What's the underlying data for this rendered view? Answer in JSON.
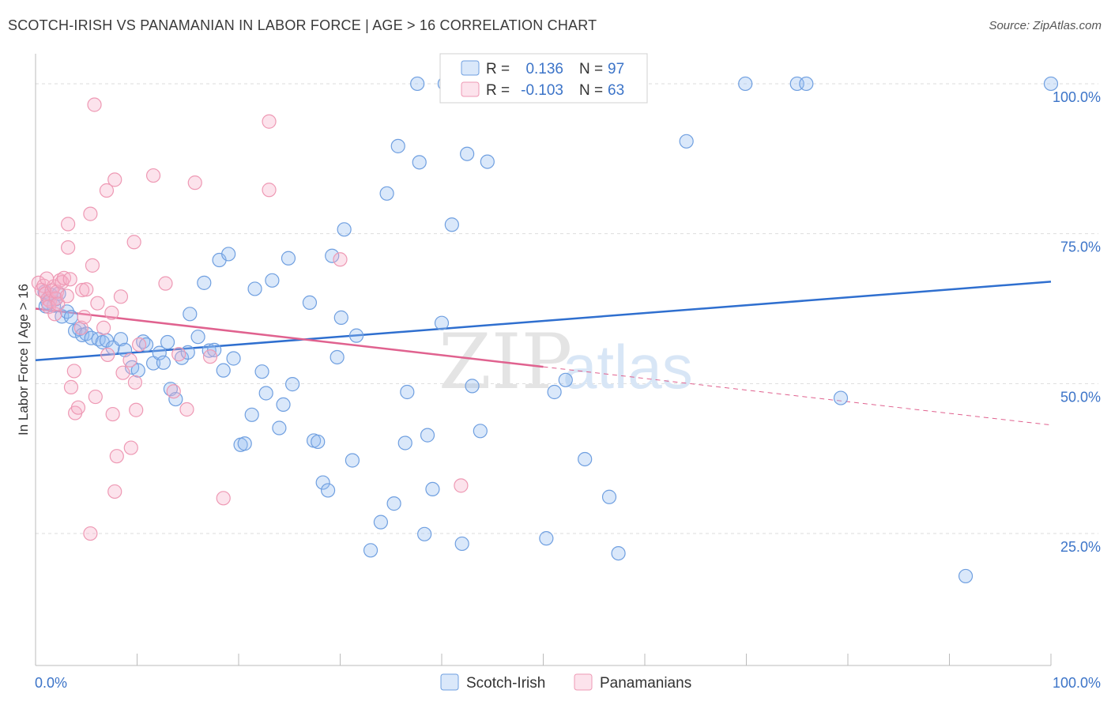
{
  "title": "SCOTCH-IRISH VS PANAMANIAN IN LABOR FORCE | AGE > 16 CORRELATION CHART",
  "source": "Source: ZipAtlas.com",
  "watermark": {
    "zip": "ZIP",
    "atlas": "atlas"
  },
  "colors": {
    "blue": "#6f9fe0",
    "blue_fill": "rgba(150,190,240,0.35)",
    "blue_line": "#2f6fcf",
    "pink": "#ee99b4",
    "pink_fill": "rgba(245,175,200,0.35)",
    "pink_line": "#e0628f",
    "tick_label": "#3c74c8",
    "grid": "#dddddd"
  },
  "legend": {
    "rows": [
      {
        "r_label": "R =",
        "r_value": "0.136",
        "n_label": "N =",
        "n_value": "97"
      },
      {
        "r_label": "R =",
        "r_value": "-0.103",
        "n_label": "N =",
        "n_value": "63"
      }
    ],
    "bottom": [
      "Scotch-Irish",
      "Panamanians"
    ]
  },
  "chart_data": {
    "type": "scatter",
    "title": "SCOTCH-IRISH VS PANAMANIAN IN LABOR FORCE | AGE > 16 CORRELATION CHART",
    "xlabel": "",
    "ylabel": "In Labor Force | Age > 16",
    "xlim": [
      0,
      100
    ],
    "ylim": [
      3,
      105
    ],
    "x_tick_labels": [
      "0.0%",
      "100.0%"
    ],
    "y_ticks": [
      25,
      50,
      75,
      100
    ],
    "y_tick_labels": [
      "25.0%",
      "50.0%",
      "75.0%",
      "100.0%"
    ],
    "grid": true,
    "legend_position": "top-center",
    "series": [
      {
        "name": "Scotch-Irish",
        "R": 0.136,
        "N": 97,
        "trend": {
          "x": [
            0,
            100
          ],
          "y": [
            53.9,
            67.0
          ]
        },
        "points": [
          [
            0.9,
            65.3
          ],
          [
            1.2,
            63.5
          ],
          [
            1.5,
            64.8
          ],
          [
            1.8,
            63.0
          ],
          [
            2.0,
            64.1
          ],
          [
            2.3,
            65.0
          ],
          [
            1.0,
            62.9
          ],
          [
            2.6,
            61.2
          ],
          [
            3.1,
            62.0
          ],
          [
            3.5,
            61.1
          ],
          [
            3.9,
            58.8
          ],
          [
            4.3,
            59.1
          ],
          [
            4.6,
            58.1
          ],
          [
            5.0,
            58.3
          ],
          [
            5.5,
            57.6
          ],
          [
            6.2,
            57.4
          ],
          [
            6.6,
            56.9
          ],
          [
            7.0,
            57.2
          ],
          [
            7.6,
            56.0
          ],
          [
            8.4,
            57.4
          ],
          [
            8.8,
            55.6
          ],
          [
            9.5,
            52.7
          ],
          [
            10.1,
            52.2
          ],
          [
            10.6,
            57.0
          ],
          [
            10.9,
            56.5
          ],
          [
            11.6,
            53.4
          ],
          [
            12.2,
            55.1
          ],
          [
            12.6,
            53.5
          ],
          [
            13.0,
            56.9
          ],
          [
            13.3,
            49.1
          ],
          [
            13.8,
            47.4
          ],
          [
            14.4,
            54.3
          ],
          [
            15.0,
            55.2
          ],
          [
            15.2,
            61.6
          ],
          [
            16.0,
            57.8
          ],
          [
            16.6,
            66.8
          ],
          [
            17.1,
            55.5
          ],
          [
            17.6,
            55.6
          ],
          [
            18.1,
            70.6
          ],
          [
            18.5,
            52.2
          ],
          [
            19.0,
            71.6
          ],
          [
            19.5,
            54.2
          ],
          [
            20.2,
            39.8
          ],
          [
            20.6,
            40.0
          ],
          [
            21.3,
            44.8
          ],
          [
            21.6,
            65.8
          ],
          [
            22.3,
            52.0
          ],
          [
            22.7,
            48.4
          ],
          [
            23.3,
            67.2
          ],
          [
            24.0,
            42.6
          ],
          [
            24.4,
            46.5
          ],
          [
            24.9,
            70.9
          ],
          [
            25.3,
            49.9
          ],
          [
            27.0,
            63.5
          ],
          [
            27.4,
            40.5
          ],
          [
            27.8,
            40.3
          ],
          [
            28.3,
            33.5
          ],
          [
            28.8,
            32.2
          ],
          [
            29.2,
            71.3
          ],
          [
            29.7,
            54.4
          ],
          [
            30.1,
            61.0
          ],
          [
            30.4,
            75.7
          ],
          [
            31.2,
            37.2
          ],
          [
            31.6,
            58.0
          ],
          [
            33.0,
            22.2
          ],
          [
            34.0,
            26.9
          ],
          [
            34.6,
            81.7
          ],
          [
            35.3,
            30.0
          ],
          [
            35.7,
            89.6
          ],
          [
            36.4,
            40.1
          ],
          [
            36.6,
            48.6
          ],
          [
            37.6,
            100.0
          ],
          [
            37.8,
            86.9
          ],
          [
            38.3,
            24.9
          ],
          [
            38.6,
            41.4
          ],
          [
            39.1,
            32.4
          ],
          [
            40.0,
            60.1
          ],
          [
            40.3,
            100.0
          ],
          [
            41.0,
            76.5
          ],
          [
            42.0,
            23.3
          ],
          [
            42.5,
            88.3
          ],
          [
            43.0,
            49.6
          ],
          [
            43.8,
            42.1
          ],
          [
            44.5,
            87.0
          ],
          [
            48.4,
            100.0
          ],
          [
            50.3,
            24.2
          ],
          [
            51.1,
            48.6
          ],
          [
            52.2,
            50.6
          ],
          [
            54.1,
            37.4
          ],
          [
            56.5,
            31.1
          ],
          [
            57.4,
            21.7
          ],
          [
            64.1,
            90.4
          ],
          [
            69.9,
            100.0
          ],
          [
            75.0,
            100.0
          ],
          [
            75.9,
            100.0
          ],
          [
            79.3,
            47.6
          ],
          [
            91.6,
            17.9
          ],
          [
            100.0,
            100.0
          ]
        ]
      },
      {
        "name": "Panamanians",
        "R": -0.103,
        "N": 63,
        "trend": {
          "x": [
            0,
            50
          ],
          "y": [
            62.5,
            52.8
          ]
        },
        "trend_dashed": {
          "x": [
            50,
            100
          ],
          "y": [
            52.8,
            43.1
          ]
        },
        "points": [
          [
            0.3,
            66.8
          ],
          [
            0.6,
            65.6
          ],
          [
            0.8,
            66.3
          ],
          [
            1.0,
            65.0
          ],
          [
            1.2,
            64.1
          ],
          [
            1.4,
            63.8
          ],
          [
            1.6,
            65.5
          ],
          [
            1.8,
            66.2
          ],
          [
            2.0,
            64.2
          ],
          [
            2.1,
            65.3
          ],
          [
            1.1,
            67.5
          ],
          [
            1.3,
            62.8
          ],
          [
            1.9,
            61.6
          ],
          [
            2.2,
            63.3
          ],
          [
            2.4,
            67.2
          ],
          [
            2.6,
            66.9
          ],
          [
            2.8,
            67.6
          ],
          [
            3.1,
            64.6
          ],
          [
            3.2,
            76.6
          ],
          [
            3.2,
            72.7
          ],
          [
            3.4,
            67.4
          ],
          [
            3.5,
            49.4
          ],
          [
            3.8,
            52.1
          ],
          [
            3.9,
            45.1
          ],
          [
            4.2,
            46.0
          ],
          [
            4.5,
            59.3
          ],
          [
            4.6,
            65.6
          ],
          [
            4.8,
            61.1
          ],
          [
            5.0,
            65.7
          ],
          [
            5.4,
            78.3
          ],
          [
            5.6,
            69.7
          ],
          [
            5.8,
            96.5
          ],
          [
            5.9,
            47.8
          ],
          [
            6.1,
            63.4
          ],
          [
            6.7,
            59.3
          ],
          [
            7.0,
            82.2
          ],
          [
            7.1,
            54.8
          ],
          [
            7.5,
            61.8
          ],
          [
            7.6,
            44.9
          ],
          [
            7.8,
            84.0
          ],
          [
            7.8,
            32.0
          ],
          [
            8.0,
            37.9
          ],
          [
            8.4,
            64.5
          ],
          [
            8.6,
            51.8
          ],
          [
            9.3,
            53.9
          ],
          [
            9.4,
            39.3
          ],
          [
            9.7,
            73.6
          ],
          [
            9.8,
            50.2
          ],
          [
            9.9,
            45.6
          ],
          [
            10.2,
            56.5
          ],
          [
            11.6,
            84.7
          ],
          [
            12.8,
            66.7
          ],
          [
            13.6,
            48.7
          ],
          [
            14.1,
            54.9
          ],
          [
            14.9,
            45.7
          ],
          [
            15.7,
            83.5
          ],
          [
            17.2,
            54.5
          ],
          [
            18.5,
            30.9
          ],
          [
            23.0,
            93.7
          ],
          [
            23.0,
            82.3
          ],
          [
            30.0,
            70.7
          ],
          [
            41.9,
            33.0
          ],
          [
            5.4,
            25.0
          ]
        ]
      }
    ]
  }
}
